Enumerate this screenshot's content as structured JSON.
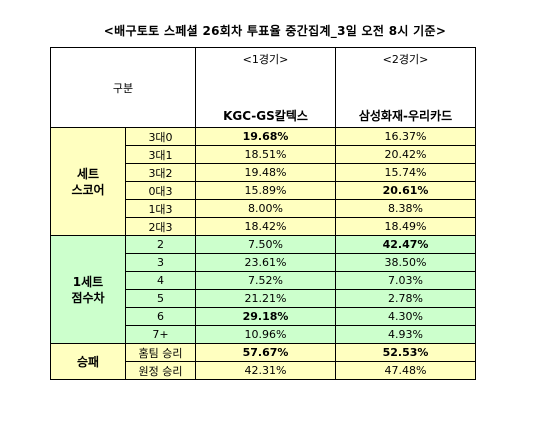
{
  "title": "<배구토토 스페셜 26회차 투표율 중간집계_3일 오전 8시 기준>",
  "table": {
    "header": {
      "label": "구분",
      "games": [
        {
          "round": "<1경기>",
          "match": "KGC-GS칼텍스"
        },
        {
          "round": "<2경기>",
          "match": "삼성화재-우리카드"
        }
      ]
    },
    "groups": [
      {
        "label": [
          "세트",
          "스코어"
        ],
        "color": "#ffffc0",
        "rows": [
          {
            "item": "3대0",
            "cells": [
              {
                "text": "19.68%",
                "bold": true
              },
              {
                "text": "16.37%"
              }
            ]
          },
          {
            "item": "3대1",
            "cells": [
              {
                "text": "18.51%"
              },
              {
                "text": "20.42%"
              }
            ]
          },
          {
            "item": "3대2",
            "cells": [
              {
                "text": "19.48%"
              },
              {
                "text": "15.74%"
              }
            ]
          },
          {
            "item": "0대3",
            "cells": [
              {
                "text": "15.89%"
              },
              {
                "text": "20.61%",
                "bold": true
              }
            ]
          },
          {
            "item": "1대3",
            "cells": [
              {
                "text": "8.00%"
              },
              {
                "text": "8.38%"
              }
            ]
          },
          {
            "item": "2대3",
            "cells": [
              {
                "text": "18.42%"
              },
              {
                "text": "18.49%"
              }
            ]
          }
        ]
      },
      {
        "label": [
          "1세트",
          "점수차"
        ],
        "color": "#ccffcc",
        "rows": [
          {
            "item": "2",
            "cells": [
              {
                "text": "7.50%"
              },
              {
                "text": "42.47%",
                "bold": true
              }
            ]
          },
          {
            "item": "3",
            "cells": [
              {
                "text": "23.61%"
              },
              {
                "text": "38.50%"
              }
            ]
          },
          {
            "item": "4",
            "cells": [
              {
                "text": "7.52%"
              },
              {
                "text": "7.03%"
              }
            ]
          },
          {
            "item": "5",
            "cells": [
              {
                "text": "21.21%"
              },
              {
                "text": "2.78%"
              }
            ]
          },
          {
            "item": "6",
            "cells": [
              {
                "text": "29.18%",
                "bold": true
              },
              {
                "text": "4.30%"
              }
            ]
          },
          {
            "item": "7+",
            "cells": [
              {
                "text": "10.96%"
              },
              {
                "text": "4.93%"
              }
            ]
          }
        ]
      },
      {
        "label": [
          "승패"
        ],
        "color": "#ffffc0",
        "rows": [
          {
            "item": "홈팀 승리",
            "cells": [
              {
                "text": "57.67%",
                "bold": true
              },
              {
                "text": "52.53%",
                "bold": true
              }
            ]
          },
          {
            "item": "원정 승리",
            "cells": [
              {
                "text": "42.31%"
              },
              {
                "text": "47.48%"
              }
            ]
          }
        ]
      }
    ]
  }
}
